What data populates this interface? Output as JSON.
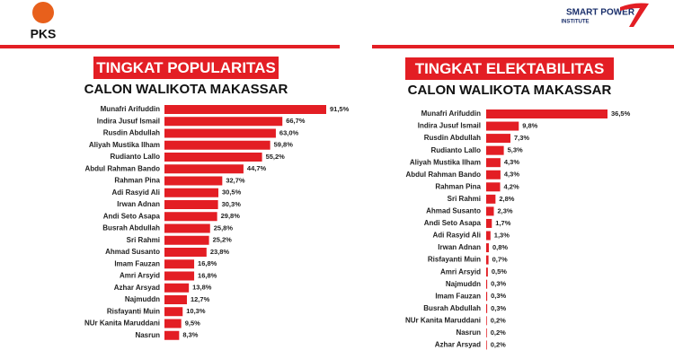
{
  "logos": {
    "left": "PKS",
    "right_top": "SMART POWER",
    "right_bottom": "INSTITUTE"
  },
  "chart_data": [
    {
      "type": "bar",
      "orientation": "horizontal",
      "title": "TINGKAT POPULARITAS",
      "subtitle": "CALON WALIKOTA MAKASSAR",
      "color": "#e31e24",
      "categories": [
        "Munafri Arifuddin",
        "Indira Jusuf Ismail",
        "Rusdin Abdullah",
        "Aliyah Mustika Ilham",
        "Rudianto Lallo",
        "Abdul Rahman Bando",
        "Rahman Pina",
        "Adi Rasyid Ali",
        "Irwan Adnan",
        "Andi Seto Asapa",
        "Busrah Abdullah",
        "Sri Rahmi",
        "Ahmad Susanto",
        "Imam Fauzan",
        "Amri Arsyid",
        "Azhar Arsyad",
        "Najmuddn",
        "Risfayanti Muin",
        "NUr Kanita Maruddani",
        "Nasrun"
      ],
      "values": [
        91.5,
        66.7,
        63.0,
        59.8,
        55.2,
        44.7,
        32.7,
        30.5,
        30.3,
        29.8,
        25.8,
        25.2,
        23.8,
        16.8,
        16.8,
        13.8,
        12.7,
        10.3,
        9.5,
        8.3
      ],
      "value_labels": [
        "91,5%",
        "66,7%",
        "63,0%",
        "59,8%",
        "55,2%",
        "44,7%",
        "32,7%",
        "30,5%",
        "30,3%",
        "29,8%",
        "25,8%",
        "25,2%",
        "23,8%",
        "16,8%",
        "16,8%",
        "13,8%",
        "12,7%",
        "10,3%",
        "9,5%",
        "8,3%"
      ]
    },
    {
      "type": "bar",
      "orientation": "horizontal",
      "title": "TINGKAT ELEKTABILITAS",
      "subtitle": "CALON WALIKOTA MAKASSAR",
      "color": "#e31e24",
      "categories": [
        "Munafri Arifuddin",
        "Indira Jusuf Ismail",
        "Rusdin Abdullah",
        "Rudianto Lallo",
        "Aliyah Mustika Ilham",
        "Abdul Rahman Bando",
        "Rahman Pina",
        "Sri Rahmi",
        "Ahmad Susanto",
        "Andi Seto Asapa",
        "Adi Rasyid Ali",
        "Irwan Adnan",
        "Risfayanti Muin",
        "Amri Arsyid",
        "Najmuddn",
        "Imam Fauzan",
        "Busrah Abdullah",
        "NUr Kanita Maruddani",
        "Nasrun",
        "Azhar Arsyad"
      ],
      "values": [
        36.5,
        9.8,
        7.3,
        5.3,
        4.3,
        4.3,
        4.2,
        2.8,
        2.3,
        1.7,
        1.3,
        0.8,
        0.7,
        0.5,
        0.3,
        0.3,
        0.3,
        0.2,
        0.2,
        0.2
      ],
      "value_labels": [
        "36,5%",
        "9,8%",
        "7,3%",
        "5,3%",
        "4,3%",
        "4,3%",
        "4,2%",
        "2,8%",
        "2,3%",
        "1,7%",
        "1,3%",
        "0,8%",
        "0,7%",
        "0,5%",
        "0,3%",
        "0,3%",
        "0,3%",
        "0,2%",
        "0,2%",
        "0,2%"
      ]
    }
  ]
}
